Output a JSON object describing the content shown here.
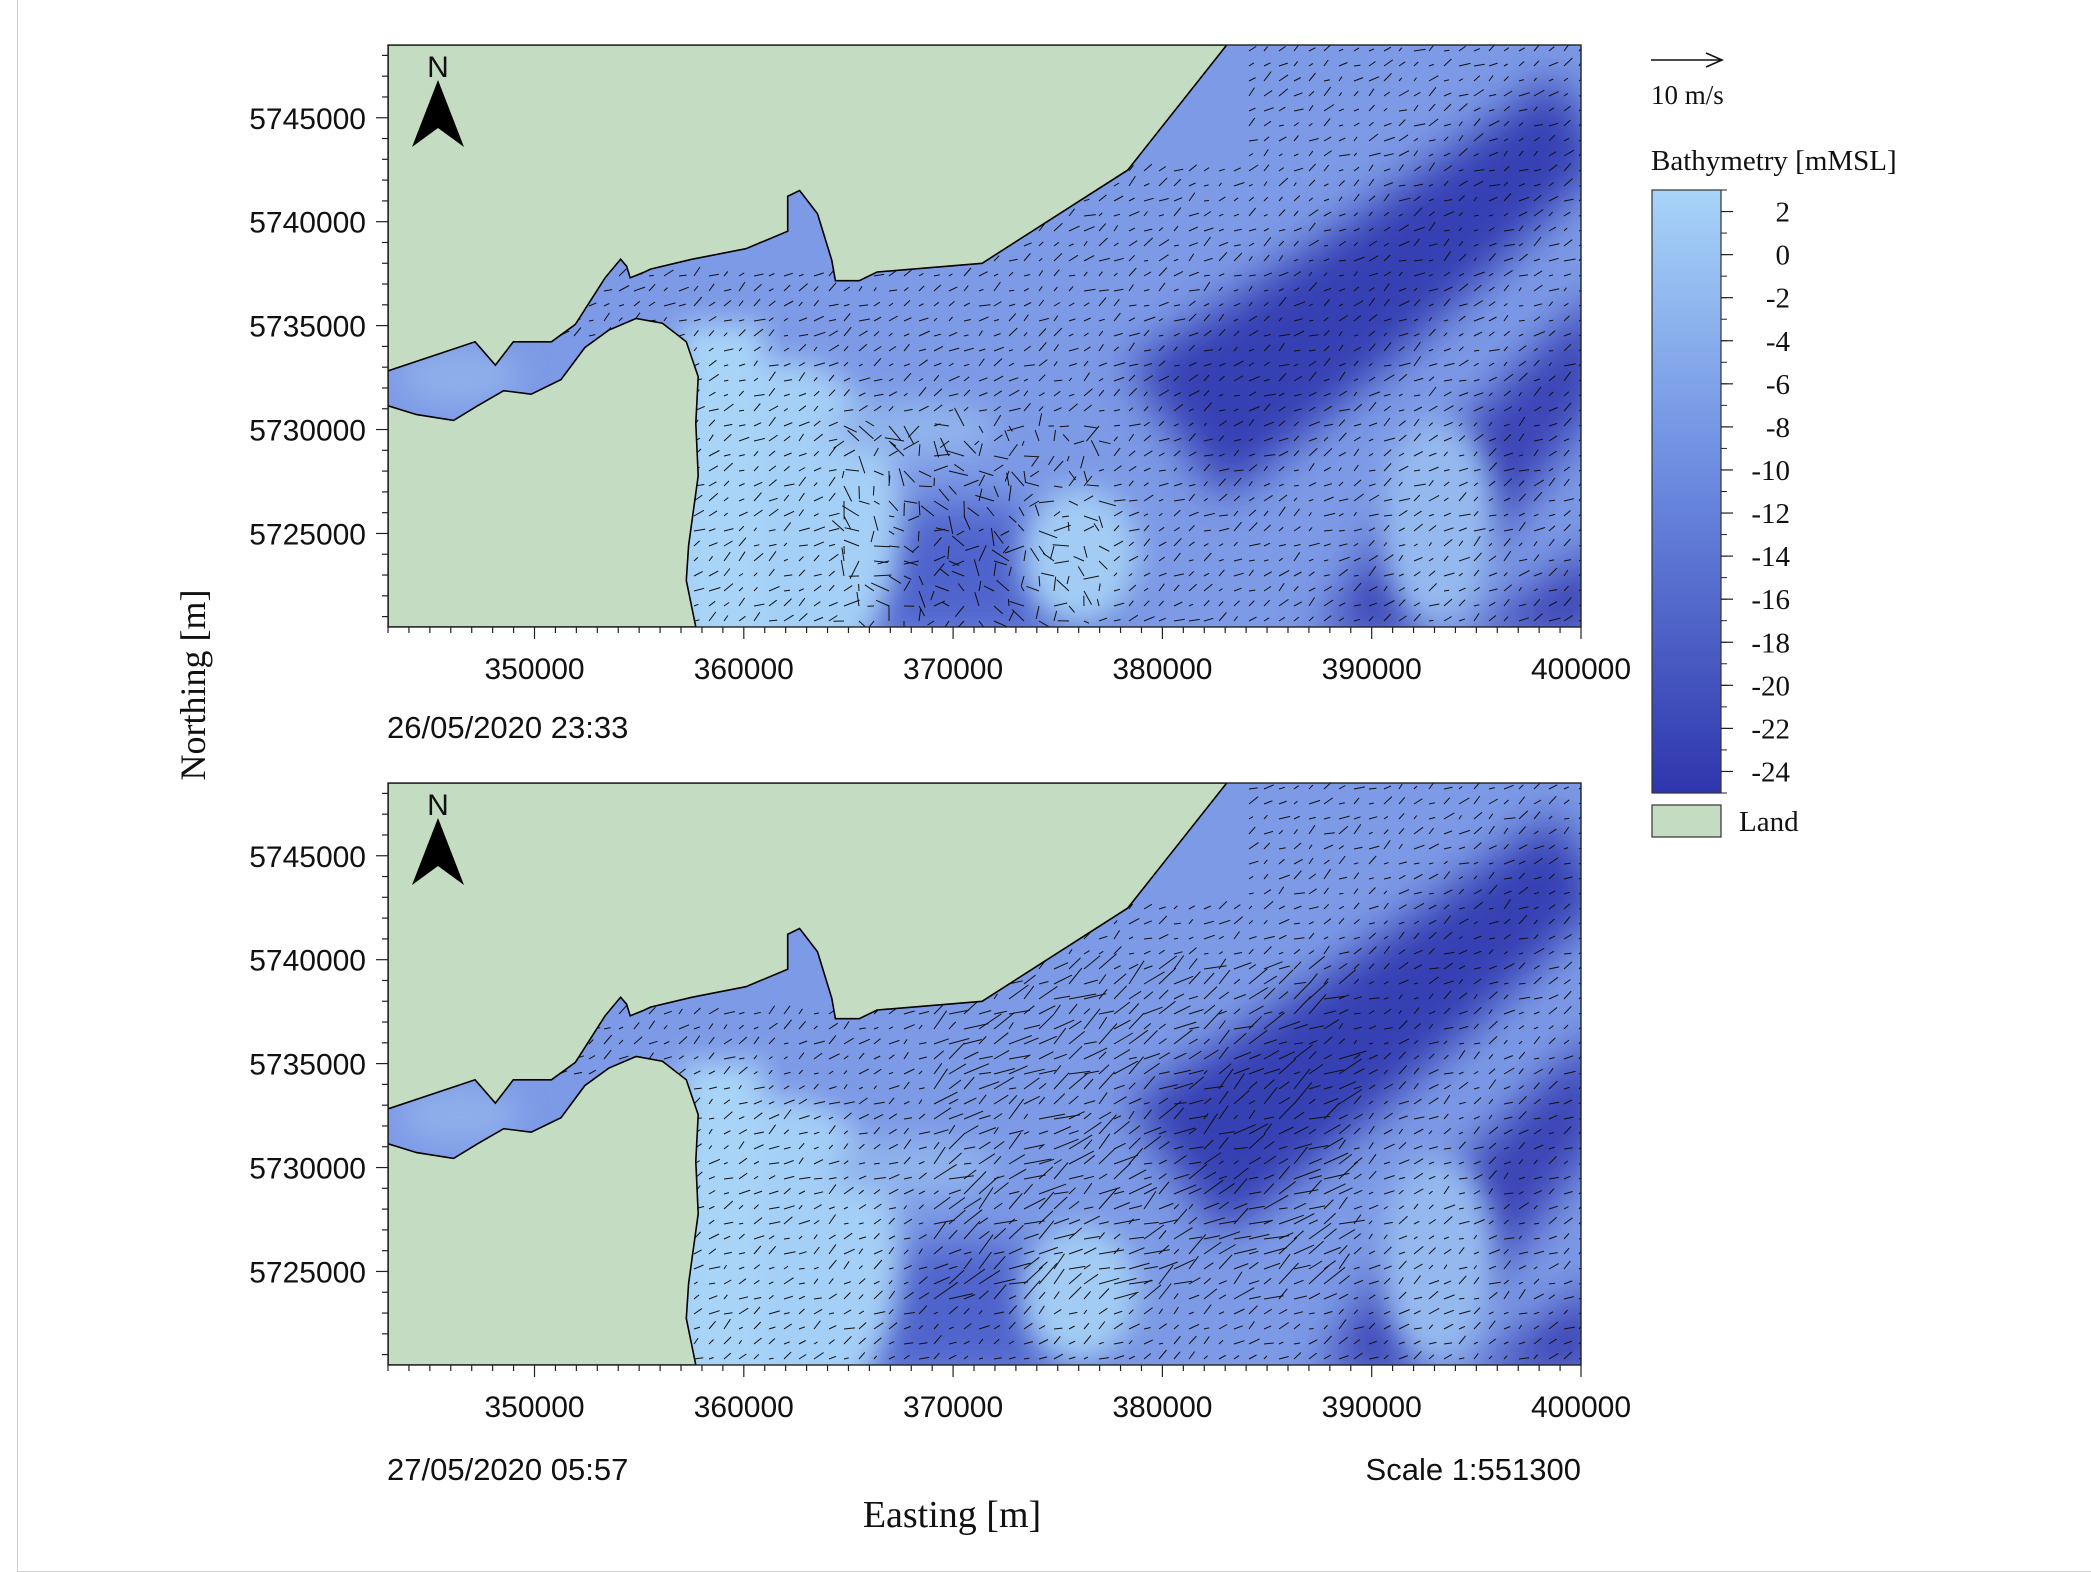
{
  "figure": {
    "y_axis_label": "Northing [m]",
    "x_axis_label": "Easting [m]",
    "scale_text": "Scale 1:551300",
    "north_label": "N",
    "north_icon": "north-arrow-icon"
  },
  "colors": {
    "land": "#c4dcc2",
    "shallow_water": "#a8d4f8",
    "deep_water": "#2e36ad",
    "coastline": "#000000",
    "vectors": "#111111"
  },
  "legend": {
    "vector_scale_label": "10 m/s",
    "bathymetry_title": "Bathymetry [mMSL]",
    "bathymetry_ticks": [
      "2",
      "0",
      "-2",
      "-4",
      "-6",
      "-8",
      "-10",
      "-12",
      "-14",
      "-16",
      "-18",
      "-20",
      "-22",
      "-24"
    ],
    "bathymetry_max": 3,
    "bathymetry_min": -25,
    "land_label": "Land"
  },
  "chart_data": [
    {
      "type": "vector-map",
      "timestamp": "26/05/2020 23:33",
      "xlim": [
        343000,
        400000
      ],
      "ylim": [
        5720500,
        5748500
      ],
      "x_ticks": [
        350000,
        360000,
        370000,
        380000,
        390000,
        400000
      ],
      "x_tick_labels": [
        "350000",
        "360000",
        "370000",
        "380000",
        "390000",
        "400000"
      ],
      "y_ticks": [
        5745000,
        5740000,
        5735000,
        5730000,
        5725000
      ],
      "y_tick_labels": [
        "5745000",
        "5740000",
        "5735000",
        "5730000",
        "5725000"
      ]
    },
    {
      "type": "vector-map",
      "timestamp": "27/05/2020 05:57",
      "xlim": [
        343000,
        400000
      ],
      "ylim": [
        5720500,
        5748500
      ],
      "x_ticks": [
        350000,
        360000,
        370000,
        380000,
        390000,
        400000
      ],
      "x_tick_labels": [
        "350000",
        "360000",
        "370000",
        "380000",
        "390000",
        "400000"
      ],
      "y_ticks": [
        5745000,
        5740000,
        5735000,
        5730000,
        5725000
      ],
      "y_tick_labels": [
        "5745000",
        "5740000",
        "5735000",
        "5730000",
        "5725000"
      ]
    }
  ]
}
